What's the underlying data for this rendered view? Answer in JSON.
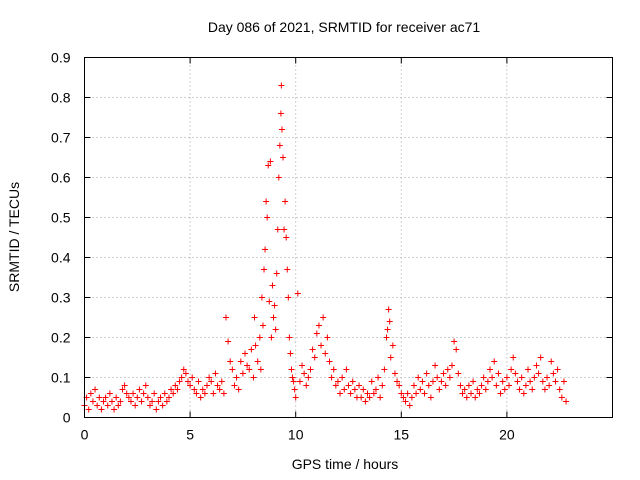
{
  "chart_data": {
    "type": "scatter",
    "title": "Day 086 of 2021, SRMTID for receiver ac71",
    "xlabel": "GPS time / hours",
    "ylabel": "SRMTID / TECUs",
    "xlim": [
      0,
      25
    ],
    "ylim": [
      0,
      0.9
    ],
    "xticks": [
      0,
      5,
      10,
      15,
      20
    ],
    "xtick_labels": [
      "0",
      "5",
      "10",
      "15",
      "20"
    ],
    "yticks": [
      0,
      0.1,
      0.2,
      0.3,
      0.4,
      0.5,
      0.6,
      0.7,
      0.8,
      0.9
    ],
    "ytick_labels": [
      "0",
      "0.1",
      "0.2",
      "0.3",
      "0.4",
      "0.5",
      "0.6",
      "0.7",
      "0.8",
      "0.9"
    ],
    "grid": true,
    "marker": "+",
    "color": "#ff0000",
    "series": [
      {
        "name": "SRMTID",
        "points": [
          [
            0.0,
            0.03
          ],
          [
            0.1,
            0.05
          ],
          [
            0.2,
            0.02
          ],
          [
            0.3,
            0.06
          ],
          [
            0.4,
            0.04
          ],
          [
            0.5,
            0.07
          ],
          [
            0.6,
            0.03
          ],
          [
            0.7,
            0.05
          ],
          [
            0.8,
            0.02
          ],
          [
            0.9,
            0.04
          ],
          [
            1.0,
            0.05
          ],
          [
            1.1,
            0.03
          ],
          [
            1.2,
            0.06
          ],
          [
            1.3,
            0.04
          ],
          [
            1.4,
            0.02
          ],
          [
            1.5,
            0.05
          ],
          [
            1.6,
            0.03
          ],
          [
            1.7,
            0.04
          ],
          [
            1.8,
            0.07
          ],
          [
            1.9,
            0.08
          ],
          [
            2.0,
            0.06
          ],
          [
            2.1,
            0.05
          ],
          [
            2.2,
            0.04
          ],
          [
            2.3,
            0.06
          ],
          [
            2.4,
            0.03
          ],
          [
            2.5,
            0.05
          ],
          [
            2.6,
            0.07
          ],
          [
            2.7,
            0.04
          ],
          [
            2.8,
            0.06
          ],
          [
            2.9,
            0.08
          ],
          [
            3.0,
            0.05
          ],
          [
            3.1,
            0.03
          ],
          [
            3.2,
            0.04
          ],
          [
            3.3,
            0.06
          ],
          [
            3.4,
            0.02
          ],
          [
            3.5,
            0.04
          ],
          [
            3.6,
            0.05
          ],
          [
            3.7,
            0.03
          ],
          [
            3.8,
            0.06
          ],
          [
            3.9,
            0.04
          ],
          [
            4.0,
            0.05
          ],
          [
            4.1,
            0.07
          ],
          [
            4.2,
            0.06
          ],
          [
            4.3,
            0.08
          ],
          [
            4.4,
            0.07
          ],
          [
            4.5,
            0.09
          ],
          [
            4.6,
            0.1
          ],
          [
            4.7,
            0.12
          ],
          [
            4.8,
            0.11
          ],
          [
            4.9,
            0.09
          ],
          [
            5.0,
            0.08
          ],
          [
            5.1,
            0.1
          ],
          [
            5.2,
            0.07
          ],
          [
            5.3,
            0.06
          ],
          [
            5.4,
            0.09
          ],
          [
            5.5,
            0.05
          ],
          [
            5.6,
            0.07
          ],
          [
            5.7,
            0.06
          ],
          [
            5.8,
            0.08
          ],
          [
            5.9,
            0.1
          ],
          [
            6.0,
            0.09
          ],
          [
            6.1,
            0.06
          ],
          [
            6.2,
            0.11
          ],
          [
            6.3,
            0.08
          ],
          [
            6.4,
            0.07
          ],
          [
            6.5,
            0.09
          ],
          [
            6.6,
            0.06
          ],
          [
            6.7,
            0.25
          ],
          [
            6.8,
            0.19
          ],
          [
            6.9,
            0.14
          ],
          [
            7.0,
            0.12
          ],
          [
            7.1,
            0.08
          ],
          [
            7.2,
            0.1
          ],
          [
            7.3,
            0.07
          ],
          [
            7.4,
            0.14
          ],
          [
            7.5,
            0.11
          ],
          [
            7.6,
            0.16
          ],
          [
            7.7,
            0.13
          ],
          [
            7.8,
            0.12
          ],
          [
            7.9,
            0.17
          ],
          [
            8.0,
            0.1
          ],
          [
            8.05,
            0.25
          ],
          [
            8.1,
            0.18
          ],
          [
            8.2,
            0.14
          ],
          [
            8.3,
            0.2
          ],
          [
            8.35,
            0.12
          ],
          [
            8.4,
            0.3
          ],
          [
            8.45,
            0.23
          ],
          [
            8.5,
            0.37
          ],
          [
            8.55,
            0.42
          ],
          [
            8.6,
            0.54
          ],
          [
            8.65,
            0.5
          ],
          [
            8.7,
            0.63
          ],
          [
            8.75,
            0.29
          ],
          [
            8.8,
            0.64
          ],
          [
            8.85,
            0.2
          ],
          [
            8.9,
            0.33
          ],
          [
            8.95,
            0.25
          ],
          [
            9.0,
            0.28
          ],
          [
            9.05,
            0.22
          ],
          [
            9.1,
            0.36
          ],
          [
            9.15,
            0.47
          ],
          [
            9.2,
            0.6
          ],
          [
            9.25,
            0.68
          ],
          [
            9.3,
            0.76
          ],
          [
            9.32,
            0.83
          ],
          [
            9.35,
            0.72
          ],
          [
            9.4,
            0.65
          ],
          [
            9.45,
            0.47
          ],
          [
            9.5,
            0.54
          ],
          [
            9.55,
            0.45
          ],
          [
            9.6,
            0.37
          ],
          [
            9.65,
            0.3
          ],
          [
            9.7,
            0.2
          ],
          [
            9.75,
            0.16
          ],
          [
            9.8,
            0.12
          ],
          [
            9.85,
            0.1
          ],
          [
            9.9,
            0.09
          ],
          [
            9.95,
            0.07
          ],
          [
            10.0,
            0.05
          ],
          [
            10.1,
            0.31
          ],
          [
            10.2,
            0.09
          ],
          [
            10.3,
            0.13
          ],
          [
            10.4,
            0.11
          ],
          [
            10.5,
            0.08
          ],
          [
            10.6,
            0.1
          ],
          [
            10.7,
            0.12
          ],
          [
            10.8,
            0.17
          ],
          [
            10.9,
            0.15
          ],
          [
            11.0,
            0.21
          ],
          [
            11.1,
            0.23
          ],
          [
            11.2,
            0.18
          ],
          [
            11.3,
            0.25
          ],
          [
            11.4,
            0.16
          ],
          [
            11.5,
            0.2
          ],
          [
            11.6,
            0.14
          ],
          [
            11.7,
            0.1
          ],
          [
            11.8,
            0.12
          ],
          [
            11.9,
            0.08
          ],
          [
            12.0,
            0.09
          ],
          [
            12.1,
            0.06
          ],
          [
            12.2,
            0.1
          ],
          [
            12.3,
            0.07
          ],
          [
            12.4,
            0.12
          ],
          [
            12.5,
            0.08
          ],
          [
            12.6,
            0.06
          ],
          [
            12.7,
            0.09
          ],
          [
            12.8,
            0.07
          ],
          [
            12.9,
            0.05
          ],
          [
            13.0,
            0.08
          ],
          [
            13.1,
            0.05
          ],
          [
            13.2,
            0.07
          ],
          [
            13.3,
            0.04
          ],
          [
            13.4,
            0.06
          ],
          [
            13.5,
            0.05
          ],
          [
            13.6,
            0.09
          ],
          [
            13.7,
            0.06
          ],
          [
            13.8,
            0.07
          ],
          [
            13.9,
            0.1
          ],
          [
            14.0,
            0.05
          ],
          [
            14.1,
            0.08
          ],
          [
            14.2,
            0.12
          ],
          [
            14.3,
            0.2
          ],
          [
            14.35,
            0.22
          ],
          [
            14.4,
            0.27
          ],
          [
            14.45,
            0.24
          ],
          [
            14.5,
            0.15
          ],
          [
            14.6,
            0.18
          ],
          [
            14.7,
            0.11
          ],
          [
            14.8,
            0.09
          ],
          [
            14.9,
            0.08
          ],
          [
            15.0,
            0.06
          ],
          [
            15.1,
            0.05
          ],
          [
            15.2,
            0.04
          ],
          [
            15.3,
            0.06
          ],
          [
            15.4,
            0.03
          ],
          [
            15.5,
            0.05
          ],
          [
            15.6,
            0.08
          ],
          [
            15.7,
            0.06
          ],
          [
            15.8,
            0.1
          ],
          [
            15.9,
            0.07
          ],
          [
            16.0,
            0.09
          ],
          [
            16.1,
            0.06
          ],
          [
            16.2,
            0.11
          ],
          [
            16.3,
            0.08
          ],
          [
            16.4,
            0.05
          ],
          [
            16.5,
            0.09
          ],
          [
            16.6,
            0.13
          ],
          [
            16.7,
            0.1
          ],
          [
            16.8,
            0.07
          ],
          [
            16.9,
            0.09
          ],
          [
            17.0,
            0.11
          ],
          [
            17.1,
            0.08
          ],
          [
            17.2,
            0.12
          ],
          [
            17.3,
            0.1
          ],
          [
            17.4,
            0.13
          ],
          [
            17.5,
            0.19
          ],
          [
            17.6,
            0.17
          ],
          [
            17.7,
            0.11
          ],
          [
            17.8,
            0.08
          ],
          [
            17.9,
            0.06
          ],
          [
            18.0,
            0.07
          ],
          [
            18.1,
            0.05
          ],
          [
            18.2,
            0.08
          ],
          [
            18.3,
            0.06
          ],
          [
            18.4,
            0.09
          ],
          [
            18.5,
            0.05
          ],
          [
            18.6,
            0.07
          ],
          [
            18.7,
            0.06
          ],
          [
            18.8,
            0.08
          ],
          [
            18.9,
            0.1
          ],
          [
            19.0,
            0.07
          ],
          [
            19.1,
            0.09
          ],
          [
            19.2,
            0.12
          ],
          [
            19.3,
            0.1
          ],
          [
            19.4,
            0.14
          ],
          [
            19.5,
            0.08
          ],
          [
            19.6,
            0.11
          ],
          [
            19.7,
            0.06
          ],
          [
            19.8,
            0.09
          ],
          [
            19.9,
            0.07
          ],
          [
            20.0,
            0.1
          ],
          [
            20.1,
            0.08
          ],
          [
            20.2,
            0.12
          ],
          [
            20.3,
            0.15
          ],
          [
            20.4,
            0.11
          ],
          [
            20.5,
            0.09
          ],
          [
            20.6,
            0.07
          ],
          [
            20.7,
            0.1
          ],
          [
            20.8,
            0.06
          ],
          [
            20.9,
            0.08
          ],
          [
            21.0,
            0.12
          ],
          [
            21.1,
            0.09
          ],
          [
            21.2,
            0.07
          ],
          [
            21.3,
            0.1
          ],
          [
            21.4,
            0.13
          ],
          [
            21.5,
            0.11
          ],
          [
            21.6,
            0.15
          ],
          [
            21.7,
            0.09
          ],
          [
            21.8,
            0.07
          ],
          [
            21.9,
            0.1
          ],
          [
            22.0,
            0.08
          ],
          [
            22.1,
            0.14
          ],
          [
            22.2,
            0.11
          ],
          [
            22.3,
            0.09
          ],
          [
            22.4,
            0.12
          ],
          [
            22.5,
            0.07
          ],
          [
            22.6,
            0.05
          ],
          [
            22.7,
            0.09
          ],
          [
            22.8,
            0.04
          ]
        ]
      }
    ]
  }
}
